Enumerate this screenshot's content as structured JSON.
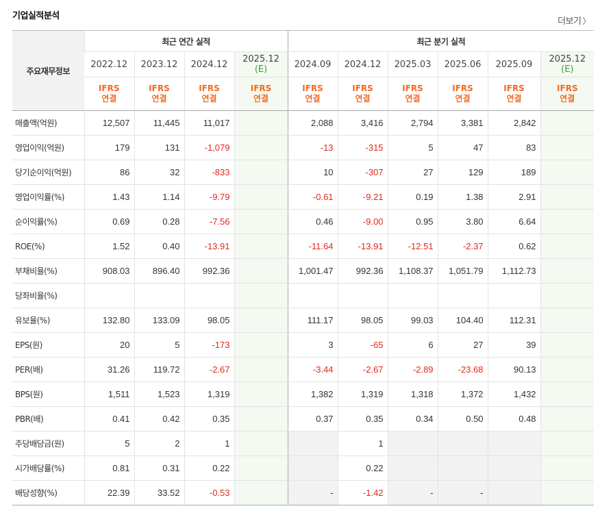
{
  "title": "기업실적분석",
  "more_label": "더보기",
  "header": {
    "rowhdr_label": "주요재무정보",
    "annual_label": "최근 연간 실적",
    "quarter_label": "최근 분기 실적",
    "columns": [
      {
        "period": "2022.12",
        "est": "",
        "acc1": "IFRS",
        "acc2": "연결"
      },
      {
        "period": "2023.12",
        "est": "",
        "acc1": "IFRS",
        "acc2": "연결"
      },
      {
        "period": "2024.12",
        "est": "",
        "acc1": "IFRS",
        "acc2": "연결"
      },
      {
        "period": "2025.12",
        "est": "(E)",
        "acc1": "IFRS",
        "acc2": "연결"
      },
      {
        "period": "2024.09",
        "est": "",
        "acc1": "IFRS",
        "acc2": "연결"
      },
      {
        "period": "2024.12",
        "est": "",
        "acc1": "IFRS",
        "acc2": "연결"
      },
      {
        "period": "2025.03",
        "est": "",
        "acc1": "IFRS",
        "acc2": "연결"
      },
      {
        "period": "2025.06",
        "est": "",
        "acc1": "IFRS",
        "acc2": "연결"
      },
      {
        "period": "2025.09",
        "est": "",
        "acc1": "IFRS",
        "acc2": "연결"
      },
      {
        "period": "2025.12",
        "est": "(E)",
        "acc1": "IFRS",
        "acc2": "연결"
      }
    ]
  },
  "rows": [
    {
      "label": "매출액(억원)",
      "values": [
        "12,507",
        "11,445",
        "11,017",
        "",
        "2,088",
        "3,416",
        "2,794",
        "3,381",
        "2,842",
        ""
      ]
    },
    {
      "label": "영업이익(억원)",
      "values": [
        "179",
        "131",
        "-1,079",
        "",
        "-13",
        "-315",
        "5",
        "47",
        "83",
        ""
      ]
    },
    {
      "label": "당기순이익(억원)",
      "values": [
        "86",
        "32",
        "-833",
        "",
        "10",
        "-307",
        "27",
        "129",
        "189",
        ""
      ]
    },
    {
      "label": "영업이익률(%)",
      "values": [
        "1.43",
        "1.14",
        "-9.79",
        "",
        "-0.61",
        "-9.21",
        "0.19",
        "1.38",
        "2.91",
        ""
      ]
    },
    {
      "label": "순이익률(%)",
      "values": [
        "0.69",
        "0.28",
        "-7.56",
        "",
        "0.46",
        "-9.00",
        "0.95",
        "3.80",
        "6.64",
        ""
      ]
    },
    {
      "label": "ROE(%)",
      "values": [
        "1.52",
        "0.40",
        "-13.91",
        "",
        "-11.64",
        "-13.91",
        "-12.51",
        "-2.37",
        "0.62",
        ""
      ]
    },
    {
      "label": "부채비율(%)",
      "values": [
        "908.03",
        "896.40",
        "992.36",
        "",
        "1,001.47",
        "992.36",
        "1,108.37",
        "1,051.79",
        "1,112.73",
        ""
      ]
    },
    {
      "label": "당좌비율(%)",
      "values": [
        "",
        "",
        "",
        "",
        "",
        "",
        "",
        "",
        "",
        ""
      ]
    },
    {
      "label": "유보율(%)",
      "values": [
        "132.80",
        "133.09",
        "98.05",
        "",
        "111.17",
        "98.05",
        "99.03",
        "104.40",
        "112.31",
        ""
      ]
    },
    {
      "label": "EPS(원)",
      "values": [
        "20",
        "5",
        "-173",
        "",
        "3",
        "-65",
        "6",
        "27",
        "39",
        ""
      ]
    },
    {
      "label": "PER(배)",
      "values": [
        "31.26",
        "119.72",
        "-2.67",
        "",
        "-3.44",
        "-2.67",
        "-2.89",
        "-23.68",
        "90.13",
        ""
      ]
    },
    {
      "label": "BPS(원)",
      "values": [
        "1,511",
        "1,523",
        "1,319",
        "",
        "1,382",
        "1,319",
        "1,318",
        "1,372",
        "1,432",
        ""
      ]
    },
    {
      "label": "PBR(배)",
      "values": [
        "0.41",
        "0.42",
        "0.35",
        "",
        "0.37",
        "0.35",
        "0.34",
        "0.50",
        "0.48",
        ""
      ]
    },
    {
      "label": "주당배당금(원)",
      "values": [
        "5",
        "2",
        "1",
        "",
        "",
        "1",
        "",
        "",
        "",
        ""
      ]
    },
    {
      "label": "시가배당률(%)",
      "values": [
        "0.81",
        "0.31",
        "0.22",
        "",
        "",
        "0.22",
        "",
        "",
        "",
        ""
      ]
    },
    {
      "label": "배당성향(%)",
      "values": [
        "22.39",
        "33.52",
        "-0.53",
        "",
        "-",
        "-1.42",
        "-",
        "-",
        "",
        ""
      ]
    }
  ],
  "colors": {
    "accent": "#f26a21",
    "negative": "#e0281c",
    "estimate_text": "#3aa33a",
    "estimate_bg": "#f4f9f1"
  }
}
